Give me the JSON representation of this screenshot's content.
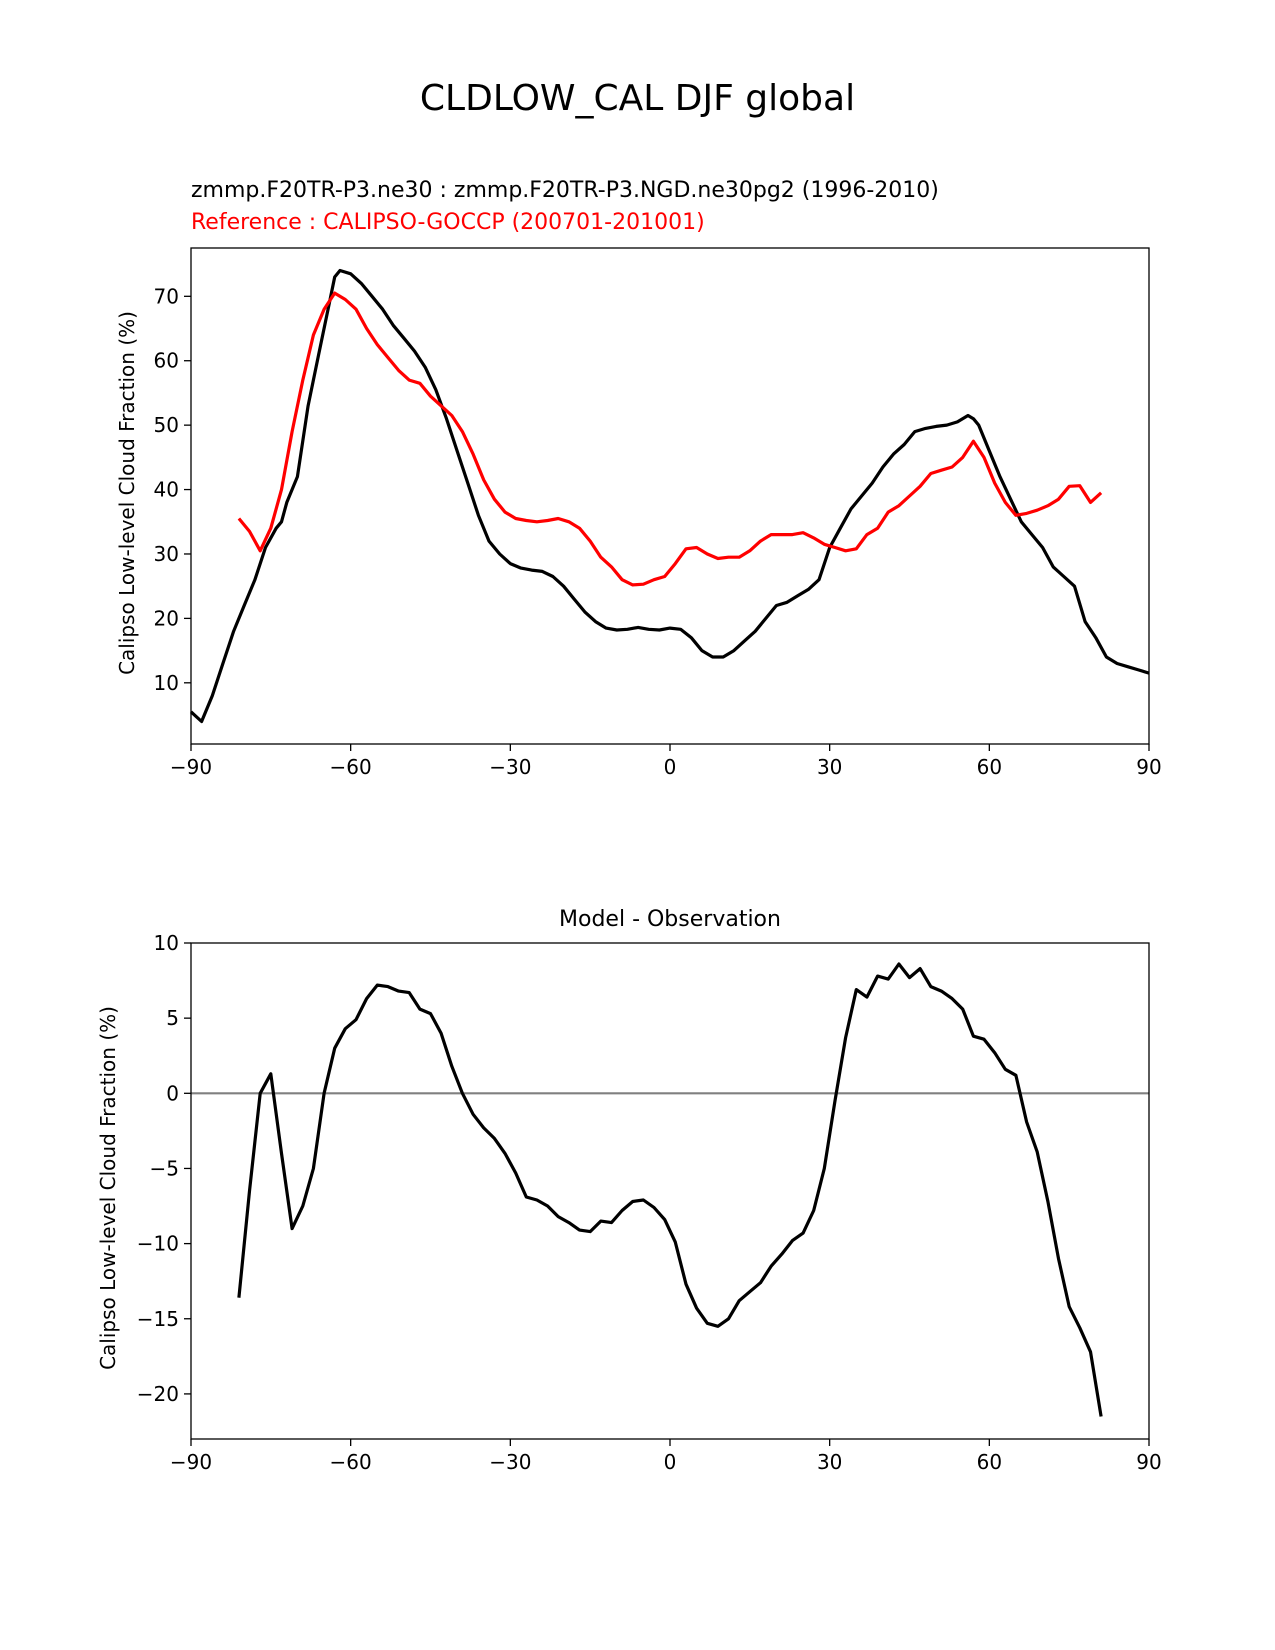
{
  "figure": {
    "title": "CLDLOW_CAL DJF global"
  },
  "chart_data": [
    {
      "type": "line",
      "subtitle": "zmmp.F20TR-P3.ne30 : zmmp.F20TR-P3.NGD.ne30pg2 (1996-2010)",
      "reference_label": "Reference : CALIPSO-GOCCP (200701-201001)",
      "xlabel": "",
      "ylabel": "Calipso Low-level Cloud Fraction (%)",
      "xlim": [
        -90,
        90
      ],
      "ylim": [
        0.5,
        77.5
      ],
      "xticks": [
        -90,
        -60,
        -30,
        0,
        30,
        60,
        90
      ],
      "xtick_labels": [
        "−90",
        "−60",
        "−30",
        "0",
        "30",
        "60",
        "90"
      ],
      "yticks": [
        10,
        20,
        30,
        40,
        50,
        60,
        70
      ],
      "ytick_labels": [
        "10",
        "20",
        "30",
        "40",
        "50",
        "60",
        "70"
      ],
      "series": [
        {
          "name": "model",
          "color": "#000000",
          "points": [
            [
              -90,
              5.5
            ],
            [
              -88,
              4
            ],
            [
              -86,
              8
            ],
            [
              -84,
              13
            ],
            [
              -82,
              18
            ],
            [
              -80,
              22
            ],
            [
              -78,
              26
            ],
            [
              -76,
              31
            ],
            [
              -74,
              34
            ],
            [
              -73,
              35
            ],
            [
              -72,
              38
            ],
            [
              -70,
              42
            ],
            [
              -68,
              53
            ],
            [
              -66,
              61
            ],
            [
              -64,
              69
            ],
            [
              -63,
              73
            ],
            [
              -62,
              74
            ],
            [
              -60,
              73.5
            ],
            [
              -58,
              72
            ],
            [
              -56,
              70
            ],
            [
              -54,
              68
            ],
            [
              -52,
              65.5
            ],
            [
              -50,
              63.5
            ],
            [
              -48,
              61.5
            ],
            [
              -46,
              59
            ],
            [
              -44,
              55.5
            ],
            [
              -42,
              51
            ],
            [
              -40,
              46
            ],
            [
              -38,
              41
            ],
            [
              -36,
              36
            ],
            [
              -34,
              32
            ],
            [
              -32,
              30
            ],
            [
              -30,
              28.5
            ],
            [
              -28,
              27.8
            ],
            [
              -26,
              27.5
            ],
            [
              -24,
              27.3
            ],
            [
              -22,
              26.5
            ],
            [
              -20,
              25
            ],
            [
              -18,
              23
            ],
            [
              -16,
              21
            ],
            [
              -14,
              19.5
            ],
            [
              -12,
              18.5
            ],
            [
              -10,
              18.2
            ],
            [
              -8,
              18.3
            ],
            [
              -6,
              18.6
            ],
            [
              -4,
              18.3
            ],
            [
              -2,
              18.2
            ],
            [
              0,
              18.5
            ],
            [
              2,
              18.3
            ],
            [
              4,
              17
            ],
            [
              6,
              15
            ],
            [
              8,
              14
            ],
            [
              10,
              14
            ],
            [
              12,
              15
            ],
            [
              14,
              16.5
            ],
            [
              16,
              18
            ],
            [
              18,
              20
            ],
            [
              20,
              22
            ],
            [
              22,
              22.5
            ],
            [
              24,
              23.5
            ],
            [
              26,
              24.5
            ],
            [
              28,
              26
            ],
            [
              30,
              31
            ],
            [
              32,
              34
            ],
            [
              34,
              37
            ],
            [
              36,
              39
            ],
            [
              38,
              41
            ],
            [
              40,
              43.5
            ],
            [
              42,
              45.5
            ],
            [
              44,
              47
            ],
            [
              46,
              49
            ],
            [
              48,
              49.5
            ],
            [
              50,
              49.8
            ],
            [
              52,
              50
            ],
            [
              54,
              50.5
            ],
            [
              56,
              51.5
            ],
            [
              57,
              51
            ],
            [
              58,
              50
            ],
            [
              60,
              46
            ],
            [
              62,
              42
            ],
            [
              64,
              38.5
            ],
            [
              66,
              35
            ],
            [
              68,
              33
            ],
            [
              70,
              31
            ],
            [
              72,
              28
            ],
            [
              74,
              26.5
            ],
            [
              76,
              25
            ],
            [
              78,
              19.5
            ],
            [
              80,
              17
            ],
            [
              82,
              14
            ],
            [
              84,
              13
            ],
            [
              86,
              12.5
            ],
            [
              88,
              12
            ],
            [
              90,
              11.5
            ]
          ]
        },
        {
          "name": "reference",
          "color": "#ff0000",
          "points": [
            [
              -81,
              35.5
            ],
            [
              -79,
              33.5
            ],
            [
              -77,
              30.5
            ],
            [
              -75,
              34
            ],
            [
              -73,
              40
            ],
            [
              -71,
              49
            ],
            [
              -69,
              57
            ],
            [
              -67,
              64
            ],
            [
              -65,
              68
            ],
            [
              -63,
              70.5
            ],
            [
              -61,
              69.5
            ],
            [
              -59,
              68
            ],
            [
              -57,
              65
            ],
            [
              -55,
              62.5
            ],
            [
              -53,
              60.5
            ],
            [
              -51,
              58.5
            ],
            [
              -49,
              57
            ],
            [
              -47,
              56.5
            ],
            [
              -45,
              54.5
            ],
            [
              -43,
              53
            ],
            [
              -41,
              51.5
            ],
            [
              -39,
              49
            ],
            [
              -37,
              45.5
            ],
            [
              -35,
              41.5
            ],
            [
              -33,
              38.5
            ],
            [
              -31,
              36.5
            ],
            [
              -29,
              35.5
            ],
            [
              -27,
              35.2
            ],
            [
              -25,
              35
            ],
            [
              -23,
              35.2
            ],
            [
              -21,
              35.5
            ],
            [
              -19,
              35
            ],
            [
              -17,
              34
            ],
            [
              -15,
              32
            ],
            [
              -13,
              29.5
            ],
            [
              -11,
              28
            ],
            [
              -9,
              26
            ],
            [
              -7,
              25.2
            ],
            [
              -5,
              25.3
            ],
            [
              -3,
              26
            ],
            [
              -1,
              26.5
            ],
            [
              1,
              28.5
            ],
            [
              3,
              30.8
            ],
            [
              5,
              31
            ],
            [
              7,
              30
            ],
            [
              9,
              29.3
            ],
            [
              11,
              29.5
            ],
            [
              13,
              29.5
            ],
            [
              15,
              30.5
            ],
            [
              17,
              32
            ],
            [
              19,
              33
            ],
            [
              21,
              33
            ],
            [
              23,
              33
            ],
            [
              25,
              33.3
            ],
            [
              27,
              32.5
            ],
            [
              29,
              31.5
            ],
            [
              31,
              31
            ],
            [
              33,
              30.5
            ],
            [
              35,
              30.8
            ],
            [
              37,
              33
            ],
            [
              39,
              34
            ],
            [
              41,
              36.5
            ],
            [
              43,
              37.5
            ],
            [
              45,
              39
            ],
            [
              47,
              40.5
            ],
            [
              49,
              42.5
            ],
            [
              51,
              43
            ],
            [
              53,
              43.5
            ],
            [
              55,
              45
            ],
            [
              57,
              47.5
            ],
            [
              59,
              45
            ],
            [
              61,
              41
            ],
            [
              63,
              38
            ],
            [
              65,
              36
            ],
            [
              67,
              36.3
            ],
            [
              69,
              36.8
            ],
            [
              71,
              37.5
            ],
            [
              73,
              38.5
            ],
            [
              75,
              40.5
            ],
            [
              77,
              40.6
            ],
            [
              79,
              38
            ],
            [
              81,
              39.5
            ]
          ]
        }
      ]
    },
    {
      "type": "line",
      "title": "Model - Observation",
      "xlabel": "",
      "ylabel": "Calipso Low-level Cloud Fraction (%)",
      "xlim": [
        -90,
        90
      ],
      "ylim": [
        -23,
        10
      ],
      "xticks": [
        -90,
        -60,
        -30,
        0,
        30,
        60,
        90
      ],
      "xtick_labels": [
        "−90",
        "−60",
        "−30",
        "0",
        "30",
        "60",
        "90"
      ],
      "yticks": [
        10,
        5,
        0,
        -5,
        -10,
        -15,
        -20
      ],
      "ytick_labels": [
        "10",
        "5",
        "0",
        "−5",
        "−10",
        "−15",
        "−20"
      ],
      "zero_line_color": "#808080",
      "series": [
        {
          "name": "difference",
          "color": "#000000",
          "points": [
            [
              -81,
              -13.6
            ],
            [
              -79,
              -6.5
            ],
            [
              -77,
              0
            ],
            [
              -75,
              1.3
            ],
            [
              -73,
              -4
            ],
            [
              -71,
              -9
            ],
            [
              -69,
              -7.5
            ],
            [
              -67,
              -5
            ],
            [
              -65,
              0
            ],
            [
              -63,
              3
            ],
            [
              -61,
              4.3
            ],
            [
              -59,
              4.9
            ],
            [
              -57,
              6.3
            ],
            [
              -55,
              7.2
            ],
            [
              -53,
              7.1
            ],
            [
              -51,
              6.8
            ],
            [
              -49,
              6.7
            ],
            [
              -47,
              5.6
            ],
            [
              -45,
              5.3
            ],
            [
              -43,
              4
            ],
            [
              -41,
              1.8
            ],
            [
              -39,
              0
            ],
            [
              -37,
              -1.4
            ],
            [
              -35,
              -2.3
            ],
            [
              -33,
              -3
            ],
            [
              -31,
              -4
            ],
            [
              -29,
              -5.3
            ],
            [
              -27,
              -6.9
            ],
            [
              -25,
              -7.1
            ],
            [
              -23,
              -7.5
            ],
            [
              -21,
              -8.2
            ],
            [
              -19,
              -8.6
            ],
            [
              -17,
              -9.1
            ],
            [
              -15,
              -9.2
            ],
            [
              -13,
              -8.5
            ],
            [
              -11,
              -8.6
            ],
            [
              -9,
              -7.8
            ],
            [
              -7,
              -7.2
            ],
            [
              -5,
              -7.1
            ],
            [
              -3,
              -7.6
            ],
            [
              -1,
              -8.4
            ],
            [
              1,
              -9.9
            ],
            [
              3,
              -12.7
            ],
            [
              5,
              -14.3
            ],
            [
              7,
              -15.3
            ],
            [
              9,
              -15.5
            ],
            [
              11,
              -15
            ],
            [
              13,
              -13.8
            ],
            [
              15,
              -13.2
            ],
            [
              17,
              -12.6
            ],
            [
              19,
              -11.5
            ],
            [
              21,
              -10.7
            ],
            [
              23,
              -9.8
            ],
            [
              25,
              -9.3
            ],
            [
              27,
              -7.8
            ],
            [
              29,
              -5
            ],
            [
              31,
              -0.5
            ],
            [
              33,
              3.7
            ],
            [
              35,
              6.9
            ],
            [
              37,
              6.4
            ],
            [
              39,
              7.8
            ],
            [
              41,
              7.6
            ],
            [
              43,
              8.6
            ],
            [
              45,
              7.7
            ],
            [
              47,
              8.3
            ],
            [
              49,
              7.1
            ],
            [
              51,
              6.8
            ],
            [
              53,
              6.3
            ],
            [
              55,
              5.6
            ],
            [
              57,
              3.8
            ],
            [
              59,
              3.6
            ],
            [
              61,
              2.7
            ],
            [
              63,
              1.6
            ],
            [
              65,
              1.2
            ],
            [
              67,
              -1.9
            ],
            [
              69,
              -3.9
            ],
            [
              71,
              -7.2
            ],
            [
              73,
              -11
            ],
            [
              75,
              -14.2
            ],
            [
              77,
              -15.6
            ],
            [
              79,
              -17.2
            ],
            [
              81,
              -21.5
            ]
          ]
        }
      ]
    }
  ]
}
